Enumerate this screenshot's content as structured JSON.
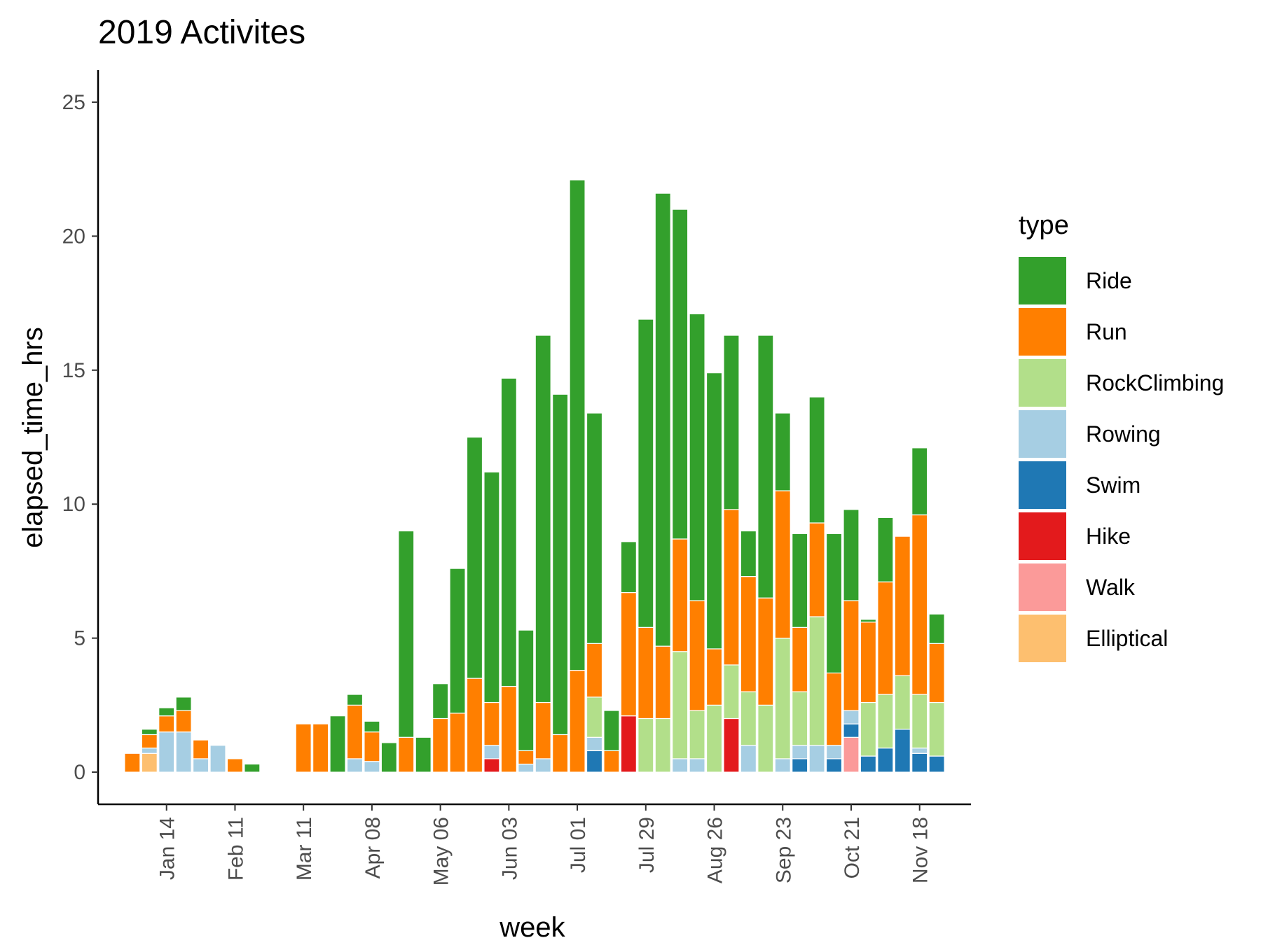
{
  "chart_data": {
    "type": "bar",
    "stacked": true,
    "title": "2019 Activites",
    "xlabel": "week",
    "ylabel": "elapsed_time_hrs",
    "ylim": [
      -1.2,
      26.2
    ],
    "yticks": [
      0,
      5,
      10,
      15,
      20,
      25
    ],
    "xlim": [
      "2018-12-17",
      "2019-12-09"
    ],
    "xticks": [
      {
        "date": "2019-01-14",
        "label": "Jan 14"
      },
      {
        "date": "2019-02-11",
        "label": "Feb 11"
      },
      {
        "date": "2019-03-11",
        "label": "Mar 11"
      },
      {
        "date": "2019-04-08",
        "label": "Apr 08"
      },
      {
        "date": "2019-05-06",
        "label": "May 06"
      },
      {
        "date": "2019-06-03",
        "label": "Jun 03"
      },
      {
        "date": "2019-07-01",
        "label": "Jul 01"
      },
      {
        "date": "2019-07-29",
        "label": "Jul 29"
      },
      {
        "date": "2019-08-26",
        "label": "Aug 26"
      },
      {
        "date": "2019-09-23",
        "label": "Sep 23"
      },
      {
        "date": "2019-10-21",
        "label": "Oct 21"
      },
      {
        "date": "2019-11-18",
        "label": "Nov 18"
      }
    ],
    "grid": false,
    "legend": {
      "title": "type",
      "position": "right",
      "entries": [
        {
          "name": "Ride",
          "color": "#33a02c"
        },
        {
          "name": "Run",
          "color": "#ff7f00"
        },
        {
          "name": "RockClimbing",
          "color": "#b2df8a"
        },
        {
          "name": "Rowing",
          "color": "#a6cee3"
        },
        {
          "name": "Swim",
          "color": "#1f78b4"
        },
        {
          "name": "Hike",
          "color": "#e31a1c"
        },
        {
          "name": "Walk",
          "color": "#fb9a99"
        },
        {
          "name": "Elliptical",
          "color": "#fdbf6f"
        }
      ]
    },
    "stack_order_bottom_to_top": [
      "Elliptical",
      "Walk",
      "Hike",
      "Swim",
      "Rowing",
      "RockClimbing",
      "Run",
      "Ride"
    ],
    "weeks": [
      {
        "week": "2018-12-31",
        "Run": 0.7
      },
      {
        "week": "2019-01-07",
        "Elliptical": 0.7,
        "Rowing": 0.2,
        "Run": 0.5,
        "Ride": 0.2
      },
      {
        "week": "2019-01-14",
        "Rowing": 1.5,
        "Run": 0.6,
        "Ride": 0.3
      },
      {
        "week": "2019-01-21",
        "Rowing": 1.5,
        "Run": 0.8,
        "Ride": 0.5
      },
      {
        "week": "2019-01-28",
        "Rowing": 0.5,
        "Run": 0.7
      },
      {
        "week": "2019-02-04",
        "Rowing": 1.0
      },
      {
        "week": "2019-02-11",
        "Run": 0.5
      },
      {
        "week": "2019-02-18",
        "Ride": 0.3
      },
      {
        "week": "2019-03-11",
        "Run": 1.8
      },
      {
        "week": "2019-03-18",
        "Run": 1.8
      },
      {
        "week": "2019-03-25",
        "Ride": 2.1
      },
      {
        "week": "2019-04-01",
        "Rowing": 0.5,
        "Run": 2.0,
        "Ride": 0.4
      },
      {
        "week": "2019-04-08",
        "Rowing": 0.4,
        "Run": 1.1,
        "Ride": 0.4
      },
      {
        "week": "2019-04-15",
        "Ride": 1.1
      },
      {
        "week": "2019-04-22",
        "Run": 1.3,
        "Ride": 7.7
      },
      {
        "week": "2019-04-29",
        "Ride": 1.3
      },
      {
        "week": "2019-05-06",
        "Run": 2.0,
        "Ride": 1.3
      },
      {
        "week": "2019-05-13",
        "Run": 2.2,
        "Ride": 5.4
      },
      {
        "week": "2019-05-20",
        "Run": 3.5,
        "Ride": 9.0
      },
      {
        "week": "2019-05-27",
        "Hike": 0.5,
        "Rowing": 0.5,
        "Run": 1.6,
        "Ride": 8.6
      },
      {
        "week": "2019-06-03",
        "Run": 3.2,
        "Ride": 11.5
      },
      {
        "week": "2019-06-10",
        "Rowing": 0.3,
        "Run": 0.5,
        "Ride": 4.5
      },
      {
        "week": "2019-06-17",
        "Rowing": 0.5,
        "Run": 2.1,
        "Ride": 13.7
      },
      {
        "week": "2019-06-24",
        "Run": 1.4,
        "Ride": 12.7
      },
      {
        "week": "2019-07-01",
        "Run": 3.8,
        "Ride": 18.3
      },
      {
        "week": "2019-07-08",
        "Swim": 0.8,
        "Rowing": 0.5,
        "RockClimbing": 1.5,
        "Run": 2.0,
        "Ride": 8.6
      },
      {
        "week": "2019-07-15",
        "Run": 0.8,
        "Ride": 1.5
      },
      {
        "week": "2019-07-22",
        "Hike": 2.1,
        "Run": 4.6,
        "Ride": 1.9
      },
      {
        "week": "2019-07-29",
        "RockClimbing": 2.0,
        "Run": 3.4,
        "Ride": 11.5
      },
      {
        "week": "2019-08-05",
        "RockClimbing": 2.0,
        "Run": 2.7,
        "Ride": 16.9
      },
      {
        "week": "2019-08-12",
        "Rowing": 0.5,
        "RockClimbing": 4.0,
        "Run": 4.2,
        "Ride": 12.3
      },
      {
        "week": "2019-08-19",
        "Rowing": 0.5,
        "RockClimbing": 1.8,
        "Run": 4.1,
        "Ride": 10.7
      },
      {
        "week": "2019-08-26",
        "RockClimbing": 2.5,
        "Run": 2.1,
        "Ride": 10.3
      },
      {
        "week": "2019-09-02",
        "Hike": 2.0,
        "RockClimbing": 2.0,
        "Run": 5.8,
        "Ride": 6.5
      },
      {
        "week": "2019-09-09",
        "Rowing": 1.0,
        "RockClimbing": 2.0,
        "Run": 4.3,
        "Ride": 1.7
      },
      {
        "week": "2019-09-16",
        "RockClimbing": 2.5,
        "Run": 4.0,
        "Ride": 9.8
      },
      {
        "week": "2019-09-23",
        "Rowing": 0.5,
        "RockClimbing": 4.5,
        "Run": 5.5,
        "Ride": 2.9
      },
      {
        "week": "2019-09-30",
        "Swim": 0.5,
        "Rowing": 0.5,
        "RockClimbing": 2.0,
        "Run": 2.4,
        "Ride": 3.5
      },
      {
        "week": "2019-10-07",
        "Rowing": 1.0,
        "RockClimbing": 4.8,
        "Run": 3.5,
        "Ride": 4.7
      },
      {
        "week": "2019-10-14",
        "Swim": 0.5,
        "Rowing": 0.5,
        "Run": 2.7,
        "Ride": 5.2
      },
      {
        "week": "2019-10-21",
        "Walk": 1.3,
        "Swim": 0.5,
        "Rowing": 0.5,
        "Run": 4.1,
        "Ride": 3.4
      },
      {
        "week": "2019-10-28",
        "Swim": 0.6,
        "RockClimbing": 2.0,
        "Run": 3.0,
        "Ride": 0.1
      },
      {
        "week": "2019-11-04",
        "Swim": 0.9,
        "RockClimbing": 2.0,
        "Run": 4.2,
        "Ride": 2.4
      },
      {
        "week": "2019-11-11",
        "Swim": 1.6,
        "RockClimbing": 2.0,
        "Run": 5.2
      },
      {
        "week": "2019-11-18",
        "Swim": 0.7,
        "Rowing": 0.2,
        "RockClimbing": 2.0,
        "Run": 6.7,
        "Ride": 2.5
      },
      {
        "week": "2019-11-25",
        "Swim": 0.6,
        "RockClimbing": 2.0,
        "Run": 2.2,
        "Ride": 1.1
      }
    ]
  }
}
